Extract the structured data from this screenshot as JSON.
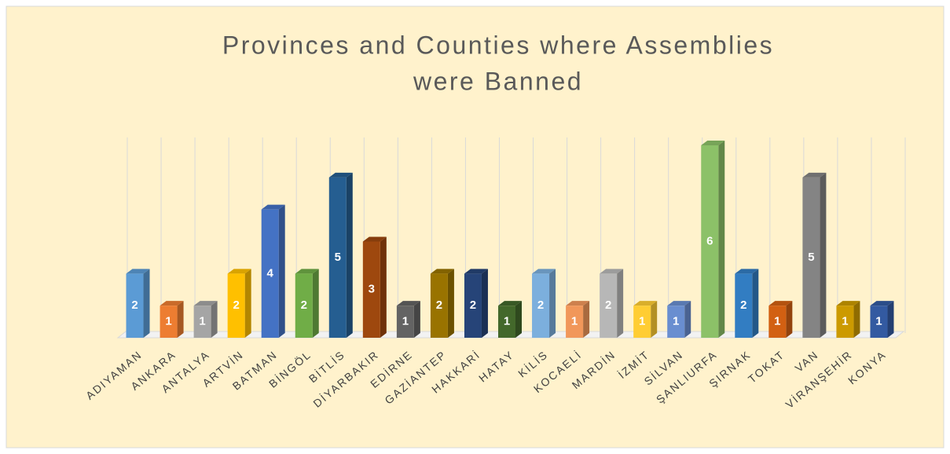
{
  "chart_data": {
    "type": "bar3d",
    "title": "Provinces and Counties where Assemblies",
    "subtitle": "were Banned",
    "categories": [
      "ADIYAMAN",
      "ANKARA",
      "ANTALYA",
      "ARTVİN",
      "BATMAN",
      "BİNGÖL",
      "BİTLİS",
      "DİYARBAKIR",
      "EDİRNE",
      "GAZİANTEP",
      "HAKKARİ",
      "HATAY",
      "KİLİS",
      "KOCAELİ",
      "MARDİN",
      "İZMİT",
      "SİLVAN",
      "ŞANLIURFA",
      "ŞIRNAK",
      "TOKAT",
      "VAN",
      "VİRANŞEHİR",
      "KONYA"
    ],
    "values": [
      2,
      1,
      1,
      2,
      4,
      2,
      5,
      3,
      1,
      2,
      2,
      1,
      2,
      1,
      2,
      1,
      1,
      6,
      2,
      1,
      5,
      1,
      1
    ],
    "colors": [
      "#5b9bd5",
      "#ed7d31",
      "#a5a5a5",
      "#ffc000",
      "#4472c4",
      "#70ad47",
      "#255e91",
      "#9e480e",
      "#636363",
      "#997300",
      "#264478",
      "#43682b",
      "#7cafdd",
      "#f1975a",
      "#b7b7b7",
      "#ffcd33",
      "#698ed0",
      "#8cc168",
      "#327dc2",
      "#d26012",
      "#848484",
      "#cc9a00",
      "#335aa1"
    ],
    "grid": true
  }
}
